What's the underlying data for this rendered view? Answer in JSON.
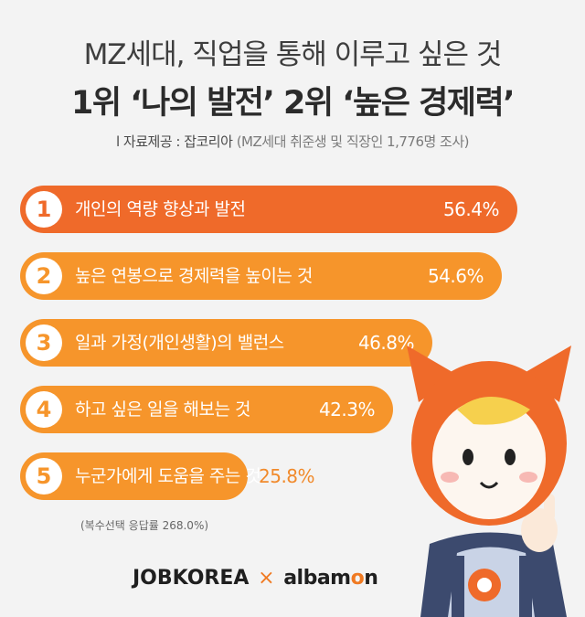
{
  "header": {
    "title_line1": "MZ세대, 직업을 통해 이루고 싶은 것",
    "title_line2": "1위 ‘나의 발전’ 2위 ‘높은 경제력’",
    "source_label": "l 자료제공 : 잡코리아",
    "source_note": "(MZ세대 취준생 및 직장인 1,776명 조사)"
  },
  "chart_data": {
    "type": "bar",
    "categories": [
      "개인의 역량 향상과 발전",
      "높은 연봉으로 경제력을 높이는 것",
      "일과 가정(개인생활)의 밸런스",
      "하고 싶은 일을 해보는 것",
      "누군가에게 도움을 주는 것"
    ],
    "ranks": [
      "1",
      "2",
      "3",
      "4",
      "5"
    ],
    "values": [
      56.4,
      54.6,
      46.8,
      42.3,
      25.8
    ],
    "value_labels": [
      "56.4%",
      "54.6%",
      "46.8%",
      "42.3%",
      "25.8%"
    ],
    "bar_colors": [
      "#ef6a2a",
      "#f6952b",
      "#f6952b",
      "#f6952b",
      "#f6952b"
    ],
    "number_colors": [
      "#ef6a2a",
      "#f6952b",
      "#f6952b",
      "#f6952b",
      "#f6952b"
    ],
    "xlim": [
      0,
      60
    ]
  },
  "footnote": "(복수선택 응답률 268.0%)",
  "logos": {
    "jobkorea": "JOBKOREA",
    "separator": "×",
    "albamon_prefix": "albam",
    "albamon_o": "o",
    "albamon_suffix": "n"
  },
  "colors": {
    "accent_orange": "#f07a22",
    "top_bar": "#ef6a2a",
    "other_bars": "#f6952b",
    "background": "#f3f3f3"
  }
}
